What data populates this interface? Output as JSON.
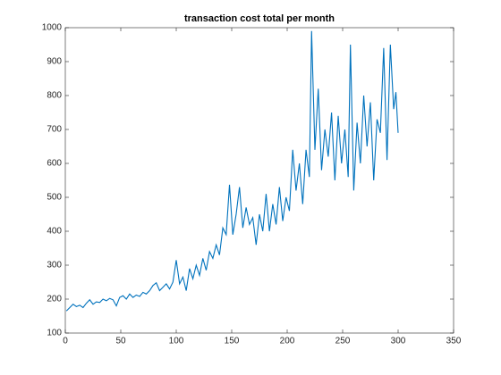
{
  "chart_data": {
    "type": "line",
    "title": "transaction cost total per month",
    "x": [
      1,
      4,
      7,
      10,
      13,
      16,
      19,
      22,
      25,
      28,
      31,
      34,
      37,
      40,
      43,
      46,
      49,
      52,
      55,
      58,
      61,
      64,
      67,
      70,
      73,
      76,
      79,
      82,
      85,
      88,
      91,
      94,
      97,
      100,
      103,
      106,
      109,
      112,
      115,
      118,
      121,
      124,
      127,
      130,
      133,
      136,
      139,
      142,
      145,
      148,
      151,
      154,
      157,
      160,
      163,
      166,
      169,
      172,
      175,
      178,
      181,
      184,
      187,
      190,
      193,
      196,
      199,
      202,
      205,
      208,
      211,
      214,
      217,
      220,
      222,
      225,
      228,
      231,
      234,
      237,
      240,
      243,
      246,
      249,
      252,
      255,
      257,
      260,
      263,
      266,
      269,
      272,
      275,
      278,
      281,
      284,
      287,
      290,
      293,
      296,
      298,
      300
    ],
    "series": [
      {
        "name": "transaction cost",
        "color": "#0072bd",
        "values": [
          165,
          175,
          185,
          178,
          182,
          175,
          188,
          198,
          185,
          192,
          190,
          200,
          195,
          202,
          198,
          180,
          205,
          210,
          200,
          215,
          205,
          212,
          208,
          220,
          215,
          225,
          240,
          248,
          225,
          235,
          245,
          230,
          250,
          315,
          245,
          265,
          225,
          290,
          260,
          300,
          270,
          320,
          285,
          340,
          320,
          360,
          330,
          410,
          390,
          537,
          390,
          450,
          530,
          410,
          470,
          420,
          440,
          360,
          450,
          400,
          510,
          400,
          480,
          420,
          530,
          430,
          500,
          460,
          640,
          520,
          600,
          480,
          640,
          560,
          990,
          640,
          820,
          580,
          700,
          620,
          750,
          550,
          740,
          600,
          700,
          560,
          950,
          520,
          720,
          600,
          800,
          650,
          780,
          550,
          730,
          690,
          940,
          610,
          950,
          760,
          810,
          690
        ]
      }
    ],
    "xlim": [
      0,
      350
    ],
    "ylim": [
      100,
      1000
    ],
    "xticks": [
      0,
      50,
      100,
      150,
      200,
      250,
      300,
      350
    ],
    "yticks": [
      100,
      200,
      300,
      400,
      500,
      600,
      700,
      800,
      900,
      1000
    ]
  }
}
